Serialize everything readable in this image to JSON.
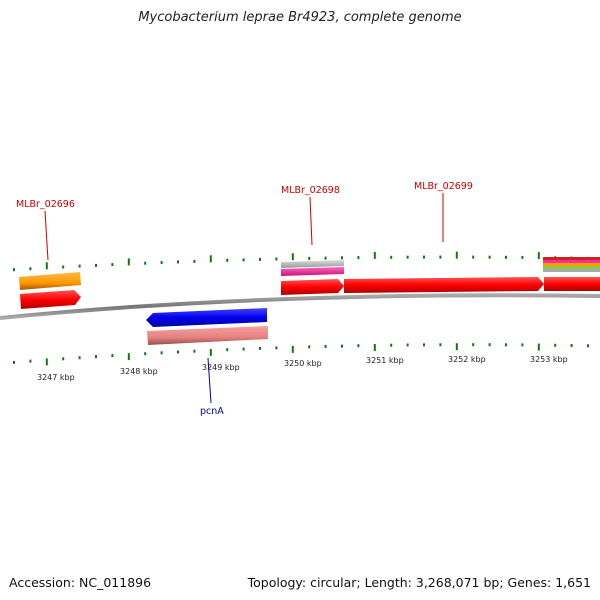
{
  "title": "Mycobacterium leprae Br4923, complete genome",
  "footer": {
    "accession": "Accession: NC_011896",
    "summary": "Topology: circular; Length: 3,268,071 bp; Genes: 1,651"
  },
  "ticks": [
    {
      "label": "3247 kbp"
    },
    {
      "label": "3248 kbp"
    },
    {
      "label": "3249 kbp"
    },
    {
      "label": "3250 kbp"
    },
    {
      "label": "3251 kbp"
    },
    {
      "label": "3252 kbp"
    },
    {
      "label": "3253 kbp"
    }
  ],
  "gene_labels": [
    {
      "name": "MLBr_02696",
      "color": "#cc0000"
    },
    {
      "name": "MLBr_02698",
      "color": "#cc0000"
    },
    {
      "name": "MLBr_02699",
      "color": "#cc0000"
    },
    {
      "name": "pcnA",
      "color": "#0000aa"
    }
  ],
  "colors": {
    "forward_cds": "#ff0000",
    "reverse_cds": "#0000ee",
    "reverse_light": "#e88080",
    "gene_orange": "#ff9900",
    "pink": "#ee3399",
    "grey": "#bbbbbb",
    "backbone": "#808080",
    "tick_green": "#117711"
  }
}
